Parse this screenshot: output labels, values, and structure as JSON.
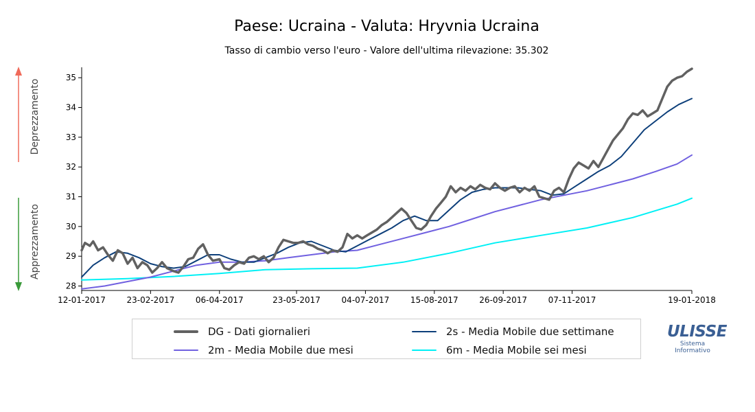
{
  "title": "Paese: Ucraina - Valuta: Hryvnia Ucraina",
  "subtitle": "Tasso di cambio verso l'euro - Valore dell'ultima rilevazione: 35.302",
  "side_labels": {
    "up": "Deprezzamento",
    "down": "Apprezzamento"
  },
  "colors": {
    "up_arrow": "#f06a5a",
    "down_arrow": "#3a9a3a"
  },
  "logo": {
    "mark": "ULISSE",
    "line1": "Sistema",
    "line2": "Informativo"
  },
  "chart_data": {
    "type": "line",
    "title": "Paese: Ucraina - Valuta: Hryvnia Ucraina",
    "subtitle": "Tasso di cambio verso l'euro - Valore dell'ultima rilevazione: 35.302",
    "xlabel": "",
    "ylabel": "",
    "x_range": [
      "2017-01-12",
      "2018-01-19"
    ],
    "ylim": [
      27.85,
      35.35
    ],
    "y_ticks": [
      28,
      29,
      30,
      31,
      32,
      33,
      34,
      35
    ],
    "x_tick_labels": [
      "12-01-2017",
      "23-02-2017",
      "06-04-2017",
      "23-05-2017",
      "04-07-2017",
      "15-08-2017",
      "26-09-2017",
      "07-11-2017",
      "19-01-2018"
    ],
    "x_tick_dates": [
      "2017-01-12",
      "2017-02-23",
      "2017-04-06",
      "2017-05-23",
      "2017-07-04",
      "2017-08-15",
      "2017-09-26",
      "2017-11-07",
      "2018-01-19"
    ],
    "grid": false,
    "legend_position": "bottom",
    "series": [
      {
        "name": "DG - Dati giornalieri",
        "color": "#616161",
        "width": 3.5,
        "points": [
          [
            "2017-01-12",
            29.2
          ],
          [
            "2017-01-14",
            29.45
          ],
          [
            "2017-01-17",
            29.35
          ],
          [
            "2017-01-19",
            29.5
          ],
          [
            "2017-01-22",
            29.2
          ],
          [
            "2017-01-25",
            29.3
          ],
          [
            "2017-01-28",
            29.05
          ],
          [
            "2017-01-31",
            28.85
          ],
          [
            "2017-02-03",
            29.2
          ],
          [
            "2017-02-06",
            29.1
          ],
          [
            "2017-02-09",
            28.75
          ],
          [
            "2017-02-12",
            28.95
          ],
          [
            "2017-02-15",
            28.6
          ],
          [
            "2017-02-18",
            28.8
          ],
          [
            "2017-02-21",
            28.7
          ],
          [
            "2017-02-24",
            28.45
          ],
          [
            "2017-02-27",
            28.6
          ],
          [
            "2017-03-02",
            28.8
          ],
          [
            "2017-03-05",
            28.6
          ],
          [
            "2017-03-09",
            28.5
          ],
          [
            "2017-03-12",
            28.45
          ],
          [
            "2017-03-15",
            28.65
          ],
          [
            "2017-03-18",
            28.9
          ],
          [
            "2017-03-21",
            28.95
          ],
          [
            "2017-03-24",
            29.25
          ],
          [
            "2017-03-27",
            29.4
          ],
          [
            "2017-03-30",
            29.05
          ],
          [
            "2017-04-02",
            28.85
          ],
          [
            "2017-04-06",
            28.9
          ],
          [
            "2017-04-09",
            28.6
          ],
          [
            "2017-04-12",
            28.55
          ],
          [
            "2017-04-15",
            28.7
          ],
          [
            "2017-04-18",
            28.8
          ],
          [
            "2017-04-21",
            28.75
          ],
          [
            "2017-04-24",
            28.95
          ],
          [
            "2017-04-27",
            29.0
          ],
          [
            "2017-04-30",
            28.9
          ],
          [
            "2017-05-03",
            29.0
          ],
          [
            "2017-05-06",
            28.8
          ],
          [
            "2017-05-09",
            28.95
          ],
          [
            "2017-05-12",
            29.3
          ],
          [
            "2017-05-15",
            29.55
          ],
          [
            "2017-05-18",
            29.5
          ],
          [
            "2017-05-21",
            29.45
          ],
          [
            "2017-05-24",
            29.45
          ],
          [
            "2017-05-27",
            29.5
          ],
          [
            "2017-05-30",
            29.4
          ],
          [
            "2017-06-02",
            29.35
          ],
          [
            "2017-06-05",
            29.25
          ],
          [
            "2017-06-08",
            29.2
          ],
          [
            "2017-06-11",
            29.1
          ],
          [
            "2017-06-14",
            29.2
          ],
          [
            "2017-06-17",
            29.15
          ],
          [
            "2017-06-20",
            29.3
          ],
          [
            "2017-06-23",
            29.75
          ],
          [
            "2017-06-26",
            29.6
          ],
          [
            "2017-06-29",
            29.7
          ],
          [
            "2017-07-02",
            29.6
          ],
          [
            "2017-07-05",
            29.7
          ],
          [
            "2017-07-08",
            29.8
          ],
          [
            "2017-07-11",
            29.9
          ],
          [
            "2017-07-14",
            30.05
          ],
          [
            "2017-07-17",
            30.15
          ],
          [
            "2017-07-20",
            30.3
          ],
          [
            "2017-07-23",
            30.45
          ],
          [
            "2017-07-26",
            30.6
          ],
          [
            "2017-07-29",
            30.45
          ],
          [
            "2017-08-01",
            30.2
          ],
          [
            "2017-08-04",
            29.95
          ],
          [
            "2017-08-07",
            29.9
          ],
          [
            "2017-08-10",
            30.05
          ],
          [
            "2017-08-13",
            30.35
          ],
          [
            "2017-08-16",
            30.6
          ],
          [
            "2017-08-19",
            30.8
          ],
          [
            "2017-08-22",
            31.0
          ],
          [
            "2017-08-25",
            31.35
          ],
          [
            "2017-08-28",
            31.15
          ],
          [
            "2017-08-31",
            31.3
          ],
          [
            "2017-09-03",
            31.2
          ],
          [
            "2017-09-06",
            31.35
          ],
          [
            "2017-09-09",
            31.25
          ],
          [
            "2017-09-12",
            31.4
          ],
          [
            "2017-09-15",
            31.3
          ],
          [
            "2017-09-18",
            31.25
          ],
          [
            "2017-09-21",
            31.45
          ],
          [
            "2017-09-24",
            31.3
          ],
          [
            "2017-09-27",
            31.2
          ],
          [
            "2017-09-30",
            31.3
          ],
          [
            "2017-10-03",
            31.35
          ],
          [
            "2017-10-06",
            31.15
          ],
          [
            "2017-10-09",
            31.3
          ],
          [
            "2017-10-12",
            31.2
          ],
          [
            "2017-10-15",
            31.35
          ],
          [
            "2017-10-18",
            31.0
          ],
          [
            "2017-10-21",
            30.95
          ],
          [
            "2017-10-24",
            30.9
          ],
          [
            "2017-10-27",
            31.2
          ],
          [
            "2017-10-30",
            31.3
          ],
          [
            "2017-11-02",
            31.15
          ],
          [
            "2017-11-05",
            31.6
          ],
          [
            "2017-11-08",
            31.95
          ],
          [
            "2017-11-11",
            32.15
          ],
          [
            "2017-11-14",
            32.05
          ],
          [
            "2017-11-17",
            31.95
          ],
          [
            "2017-11-20",
            32.2
          ],
          [
            "2017-11-23",
            32.0
          ],
          [
            "2017-11-26",
            32.3
          ],
          [
            "2017-11-29",
            32.6
          ],
          [
            "2017-12-02",
            32.9
          ],
          [
            "2017-12-05",
            33.1
          ],
          [
            "2017-12-08",
            33.3
          ],
          [
            "2017-12-11",
            33.6
          ],
          [
            "2017-12-14",
            33.8
          ],
          [
            "2017-12-17",
            33.75
          ],
          [
            "2017-12-20",
            33.9
          ],
          [
            "2017-12-23",
            33.7
          ],
          [
            "2017-12-26",
            33.8
          ],
          [
            "2017-12-29",
            33.9
          ],
          [
            "2018-01-01",
            34.3
          ],
          [
            "2018-01-04",
            34.7
          ],
          [
            "2018-01-07",
            34.9
          ],
          [
            "2018-01-10",
            35.0
          ],
          [
            "2018-01-13",
            35.05
          ],
          [
            "2018-01-16",
            35.2
          ],
          [
            "2018-01-19",
            35.302
          ]
        ]
      },
      {
        "name": "2s - Media Mobile due settimane",
        "color": "#0d3f7a",
        "width": 2,
        "points": [
          [
            "2017-01-12",
            28.3
          ],
          [
            "2017-01-19",
            28.7
          ],
          [
            "2017-01-26",
            28.95
          ],
          [
            "2017-02-02",
            29.15
          ],
          [
            "2017-02-09",
            29.1
          ],
          [
            "2017-02-16",
            28.95
          ],
          [
            "2017-02-23",
            28.75
          ],
          [
            "2017-03-02",
            28.65
          ],
          [
            "2017-03-09",
            28.6
          ],
          [
            "2017-03-16",
            28.65
          ],
          [
            "2017-03-23",
            28.85
          ],
          [
            "2017-03-30",
            29.05
          ],
          [
            "2017-04-06",
            29.05
          ],
          [
            "2017-04-13",
            28.9
          ],
          [
            "2017-04-20",
            28.8
          ],
          [
            "2017-04-27",
            28.8
          ],
          [
            "2017-05-04",
            28.95
          ],
          [
            "2017-05-11",
            29.1
          ],
          [
            "2017-05-18",
            29.3
          ],
          [
            "2017-05-25",
            29.45
          ],
          [
            "2017-06-01",
            29.5
          ],
          [
            "2017-06-08",
            29.35
          ],
          [
            "2017-06-15",
            29.2
          ],
          [
            "2017-06-22",
            29.15
          ],
          [
            "2017-06-29",
            29.35
          ],
          [
            "2017-07-06",
            29.55
          ],
          [
            "2017-07-13",
            29.75
          ],
          [
            "2017-07-20",
            29.95
          ],
          [
            "2017-07-27",
            30.2
          ],
          [
            "2017-08-03",
            30.35
          ],
          [
            "2017-08-10",
            30.2
          ],
          [
            "2017-08-17",
            30.2
          ],
          [
            "2017-08-24",
            30.55
          ],
          [
            "2017-08-31",
            30.9
          ],
          [
            "2017-09-07",
            31.15
          ],
          [
            "2017-09-14",
            31.25
          ],
          [
            "2017-09-21",
            31.3
          ],
          [
            "2017-09-28",
            31.3
          ],
          [
            "2017-10-05",
            31.3
          ],
          [
            "2017-10-12",
            31.25
          ],
          [
            "2017-10-19",
            31.2
          ],
          [
            "2017-10-26",
            31.05
          ],
          [
            "2017-11-02",
            31.1
          ],
          [
            "2017-11-09",
            31.35
          ],
          [
            "2017-11-16",
            31.6
          ],
          [
            "2017-11-23",
            31.85
          ],
          [
            "2017-11-30",
            32.05
          ],
          [
            "2017-12-07",
            32.35
          ],
          [
            "2017-12-14",
            32.8
          ],
          [
            "2017-12-21",
            33.25
          ],
          [
            "2017-12-28",
            33.55
          ],
          [
            "2018-01-04",
            33.85
          ],
          [
            "2018-01-11",
            34.1
          ],
          [
            "2018-01-19",
            34.3
          ]
        ]
      },
      {
        "name": "2m - Media Mobile due mesi",
        "color": "#7060e0",
        "width": 2,
        "points": [
          [
            "2017-01-12",
            27.9
          ],
          [
            "2017-01-26",
            28.0
          ],
          [
            "2017-02-09",
            28.15
          ],
          [
            "2017-02-23",
            28.3
          ],
          [
            "2017-03-09",
            28.5
          ],
          [
            "2017-03-23",
            28.7
          ],
          [
            "2017-04-06",
            28.8
          ],
          [
            "2017-04-20",
            28.8
          ],
          [
            "2017-05-04",
            28.85
          ],
          [
            "2017-05-18",
            28.95
          ],
          [
            "2017-06-01",
            29.05
          ],
          [
            "2017-06-15",
            29.15
          ],
          [
            "2017-06-29",
            29.2
          ],
          [
            "2017-07-13",
            29.4
          ],
          [
            "2017-07-27",
            29.6
          ],
          [
            "2017-08-10",
            29.8
          ],
          [
            "2017-08-24",
            30.0
          ],
          [
            "2017-09-07",
            30.25
          ],
          [
            "2017-09-21",
            30.5
          ],
          [
            "2017-10-05",
            30.7
          ],
          [
            "2017-10-19",
            30.9
          ],
          [
            "2017-11-02",
            31.05
          ],
          [
            "2017-11-16",
            31.2
          ],
          [
            "2017-11-30",
            31.4
          ],
          [
            "2017-12-14",
            31.6
          ],
          [
            "2017-12-28",
            31.85
          ],
          [
            "2018-01-10",
            32.1
          ],
          [
            "2018-01-19",
            32.4
          ]
        ]
      },
      {
        "name": "6m - Media Mobile sei mesi",
        "color": "#00f0f5",
        "width": 2,
        "points": [
          [
            "2017-01-12",
            28.2
          ],
          [
            "2017-02-09",
            28.25
          ],
          [
            "2017-03-09",
            28.32
          ],
          [
            "2017-04-06",
            28.42
          ],
          [
            "2017-05-04",
            28.55
          ],
          [
            "2017-06-01",
            28.58
          ],
          [
            "2017-06-29",
            28.6
          ],
          [
            "2017-07-27",
            28.8
          ],
          [
            "2017-08-24",
            29.1
          ],
          [
            "2017-09-21",
            29.45
          ],
          [
            "2017-10-19",
            29.7
          ],
          [
            "2017-11-16",
            29.95
          ],
          [
            "2017-12-14",
            30.3
          ],
          [
            "2018-01-10",
            30.75
          ],
          [
            "2018-01-19",
            30.95
          ]
        ]
      }
    ]
  }
}
